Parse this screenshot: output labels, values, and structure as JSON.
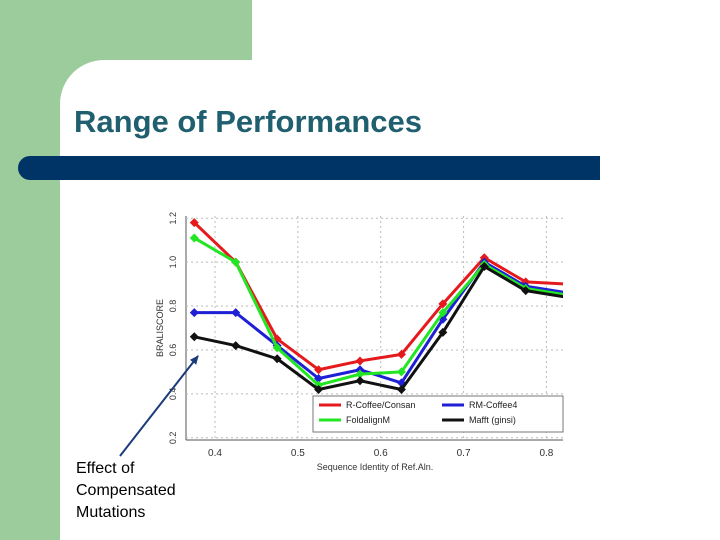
{
  "slide": {
    "title": "Range of Performances",
    "annotation_lines": [
      "Effect of",
      "Compensated",
      "Mutations"
    ]
  },
  "colors": {
    "title": "#1f5f6f",
    "bar": "#003366",
    "green_block": "#9ccc9c"
  },
  "chart_data": {
    "type": "line",
    "xlabel": "Sequence Identity of Ref.Aln.",
    "ylabel": "BRALISCORE",
    "xlim": [
      0.365,
      0.82
    ],
    "ylim": [
      0.19,
      1.21
    ],
    "xticks": [
      0.4,
      0.5,
      0.6,
      0.7,
      0.8
    ],
    "yticks": [
      0.2,
      0.4,
      0.6,
      0.8,
      1.0,
      1.2
    ],
    "x": [
      0.375,
      0.425,
      0.475,
      0.525,
      0.575,
      0.625,
      0.675,
      0.725,
      0.775,
      0.825
    ],
    "legend_position": "bottom-right",
    "series": [
      {
        "name": "R-Coffee/Consan",
        "color": "#e41a1c",
        "values": [
          1.18,
          1.0,
          0.65,
          0.51,
          0.55,
          0.58,
          0.81,
          1.02,
          0.91,
          0.9
        ]
      },
      {
        "name": "RM-Coffee4",
        "color": "#1f1fd6",
        "values": [
          0.77,
          0.77,
          0.62,
          0.47,
          0.51,
          0.45,
          0.74,
          1.0,
          0.89,
          0.86
        ]
      },
      {
        "name": "FoldalignM",
        "color": "#22e622",
        "values": [
          1.11,
          1.0,
          0.61,
          0.44,
          0.49,
          0.5,
          0.77,
          0.99,
          0.88,
          0.85
        ]
      },
      {
        "name": "Mafft (ginsi)",
        "color": "#111111",
        "values": [
          0.66,
          0.62,
          0.56,
          0.42,
          0.46,
          0.42,
          0.68,
          0.98,
          0.87,
          0.84
        ]
      }
    ]
  }
}
